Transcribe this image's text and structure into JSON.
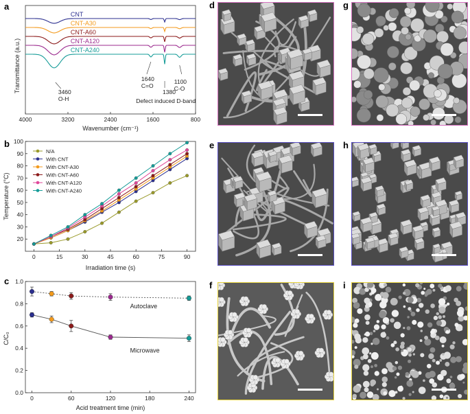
{
  "panel_letters": {
    "a": "a",
    "b": "b",
    "c": "c",
    "d": "d",
    "e": "e",
    "f": "f",
    "g": "g",
    "h": "h",
    "i": "i"
  },
  "chart_data": [
    {
      "panel": "a",
      "type": "line",
      "xlabel": "Wavenumber (cm⁻¹)",
      "ylabel": "Transmittance (a.u.)",
      "xlim": [
        4000,
        800
      ],
      "xticks": [
        "4000",
        "3200",
        "2400",
        "1600",
        "800"
      ],
      "series": [
        {
          "name": "CNT",
          "color": "#2b2f8f",
          "offset": 0.0,
          "depth": 0.7
        },
        {
          "name": "CNT-A30",
          "color": "#f39a1c",
          "offset": 1.0,
          "depth": 0.8
        },
        {
          "name": "CNT-A60",
          "color": "#8b1a1a",
          "offset": 2.0,
          "depth": 1.1
        },
        {
          "name": "CNT-A120",
          "color": "#9b2a8e",
          "offset": 3.0,
          "depth": 1.4
        },
        {
          "name": "CNT-A240",
          "color": "#169c98",
          "offset": 4.0,
          "depth": 2.0
        }
      ],
      "annotations": [
        {
          "text": "3460",
          "sub": "O-H",
          "x": 3460
        },
        {
          "text": "1640",
          "sub": "C=O",
          "x": 1640
        },
        {
          "text": "1380",
          "sub": "",
          "x": 1380
        },
        {
          "text": "1100",
          "sub": "C-O",
          "x": 1100
        },
        {
          "text": "Defect induced D-band",
          "sub": "",
          "x": 1380
        }
      ]
    },
    {
      "panel": "b",
      "type": "line",
      "xlabel": "Irradiation time (s)",
      "ylabel": "Temperature (°C)",
      "xlim": [
        -5,
        95
      ],
      "ylim": [
        10,
        100
      ],
      "xticks": [
        0,
        15,
        30,
        45,
        60,
        75,
        90
      ],
      "yticks": [
        20,
        30,
        40,
        50,
        60,
        70,
        80,
        90,
        100
      ],
      "x": [
        0,
        10,
        20,
        30,
        40,
        50,
        60,
        70,
        80,
        90
      ],
      "series": [
        {
          "name": "N/A",
          "color": "#9a9a2a",
          "values": [
            16,
            17,
            20,
            26,
            33,
            42,
            51,
            58,
            66,
            72
          ]
        },
        {
          "name": "With CNT",
          "color": "#2b2f8f",
          "values": [
            16,
            21,
            27,
            34,
            42,
            50,
            59,
            68,
            77,
            86
          ]
        },
        {
          "name": "With CNT-A30",
          "color": "#f39a1c",
          "values": [
            16,
            21,
            27,
            35,
            43,
            52,
            61,
            70,
            79,
            88
          ]
        },
        {
          "name": "With CNT-A60",
          "color": "#8b1a1a",
          "values": [
            16,
            22,
            28,
            36,
            45,
            54,
            63,
            72,
            81,
            90
          ]
        },
        {
          "name": "With CNT-A120",
          "color": "#e0479a",
          "values": [
            16,
            22,
            29,
            38,
            47,
            57,
            66,
            76,
            85,
            93
          ]
        },
        {
          "name": "With CNT-A240",
          "color": "#169c98",
          "values": [
            16,
            23,
            30,
            40,
            49,
            60,
            70,
            80,
            90,
            99
          ]
        }
      ]
    },
    {
      "panel": "c",
      "type": "scatter",
      "xlabel": "Acid treatment time (min)",
      "ylabel": "C/C₀",
      "xlim": [
        -10,
        250
      ],
      "ylim": [
        0.0,
        1.0
      ],
      "xticks": [
        0,
        60,
        120,
        180,
        240
      ],
      "yticks": [
        "0.0",
        "0.2",
        "0.4",
        "0.6",
        "0.8",
        "1.0"
      ],
      "x": [
        0,
        30,
        60,
        120,
        240
      ],
      "point_colors": [
        "#2b2f8f",
        "#f39a1c",
        "#8b1a1a",
        "#9b2a8e",
        "#169c98"
      ],
      "series": [
        {
          "name": "Autoclave",
          "values": [
            0.91,
            0.89,
            0.87,
            0.86,
            0.85
          ],
          "errors": [
            0.04,
            0.02,
            0.03,
            0.03,
            0.02
          ],
          "style": "dotted"
        },
        {
          "name": "Microwave",
          "values": [
            0.7,
            0.66,
            0.6,
            0.5,
            0.49
          ],
          "errors": [
            0.02,
            0.03,
            0.05,
            0.02,
            0.03
          ],
          "style": "solid"
        }
      ]
    }
  ],
  "sem_panels": [
    {
      "letter": "d",
      "border": "#d66fc0",
      "texture": "cubes-on-wires"
    },
    {
      "letter": "e",
      "border": "#5a4fc4",
      "texture": "cubes-on-wires"
    },
    {
      "letter": "f",
      "border": "#e6d23a",
      "texture": "flowers-on-wires"
    },
    {
      "letter": "g",
      "border": "#d66fc0",
      "texture": "dense-clusters"
    },
    {
      "letter": "h",
      "border": "#5a4fc4",
      "texture": "dense-cubes"
    },
    {
      "letter": "i",
      "border": "#e6d23a",
      "texture": "fuzzy-fibers"
    }
  ]
}
